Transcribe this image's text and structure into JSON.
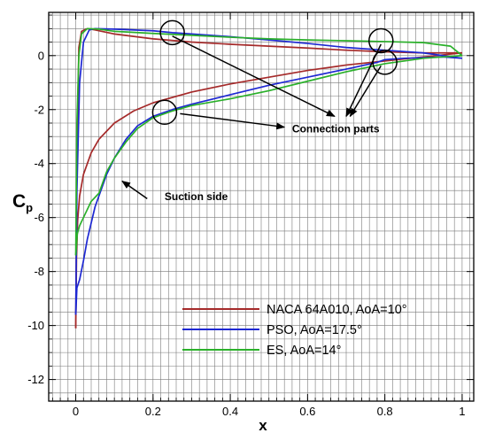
{
  "chart_data": {
    "type": "line",
    "xlabel": "x",
    "ylabel": "C",
    "ylabel_sub": "p",
    "xlim": [
      -0.07,
      1.03
    ],
    "ylim": [
      -12.8,
      1.6
    ],
    "x_ticks": [
      0,
      0.2,
      0.4,
      0.6,
      0.8,
      1
    ],
    "x_tick_labels": [
      "0",
      "0.2",
      "0.4",
      "0.6",
      "0.8",
      "1"
    ],
    "y_ticks": [
      0,
      -2,
      -4,
      -6,
      -8,
      -10,
      -12
    ],
    "y_tick_labels": [
      "0",
      "-2",
      "-4",
      "-6",
      "-8",
      "-10",
      "-12"
    ],
    "grid": true,
    "legend_position": "bottom-right",
    "series": [
      {
        "name": "NACA 64A010, AoA=10°",
        "color": "#a52a2a",
        "upper": [
          [
            0,
            -10.1
          ],
          [
            0.002,
            -7.5
          ],
          [
            0.005,
            -6.1
          ],
          [
            0.01,
            -5.2
          ],
          [
            0.02,
            -4.4
          ],
          [
            0.04,
            -3.6
          ],
          [
            0.06,
            -3.1
          ],
          [
            0.08,
            -2.8
          ],
          [
            0.1,
            -2.5
          ],
          [
            0.15,
            -2.05
          ],
          [
            0.2,
            -1.75
          ],
          [
            0.3,
            -1.35
          ],
          [
            0.4,
            -1.05
          ],
          [
            0.5,
            -0.8
          ],
          [
            0.6,
            -0.55
          ],
          [
            0.7,
            -0.35
          ],
          [
            0.8,
            -0.2
          ],
          [
            0.9,
            -0.05
          ],
          [
            1.0,
            0.1
          ]
        ],
        "lower": [
          [
            0,
            -10.1
          ],
          [
            0.003,
            -4.0
          ],
          [
            0.008,
            0.3
          ],
          [
            0.015,
            0.9
          ],
          [
            0.03,
            1.0
          ],
          [
            0.05,
            0.95
          ],
          [
            0.1,
            0.8
          ],
          [
            0.2,
            0.62
          ],
          [
            0.3,
            0.5
          ],
          [
            0.4,
            0.42
          ],
          [
            0.5,
            0.35
          ],
          [
            0.6,
            0.28
          ],
          [
            0.7,
            0.2
          ],
          [
            0.8,
            0.14
          ],
          [
            0.9,
            0.1
          ],
          [
            1.0,
            0.1
          ]
        ]
      },
      {
        "name": "PSO, AoA=17.5°",
        "color": "#1e28d2",
        "upper": [
          [
            0,
            -9.6
          ],
          [
            0.003,
            -8.6
          ],
          [
            0.01,
            -8.3
          ],
          [
            0.02,
            -7.6
          ],
          [
            0.03,
            -6.8
          ],
          [
            0.05,
            -5.6
          ],
          [
            0.08,
            -4.4
          ],
          [
            0.1,
            -3.8
          ],
          [
            0.13,
            -3.1
          ],
          [
            0.16,
            -2.6
          ],
          [
            0.2,
            -2.25
          ],
          [
            0.25,
            -2.0
          ],
          [
            0.3,
            -1.8
          ],
          [
            0.4,
            -1.45
          ],
          [
            0.5,
            -1.1
          ],
          [
            0.6,
            -0.8
          ],
          [
            0.7,
            -0.5
          ],
          [
            0.78,
            -0.25
          ],
          [
            0.8,
            -0.15
          ],
          [
            0.85,
            -0.1
          ],
          [
            0.95,
            -0.05
          ],
          [
            1.0,
            -0.1
          ]
        ],
        "lower": [
          [
            0,
            -9.6
          ],
          [
            0.003,
            -5.0
          ],
          [
            0.01,
            -1.0
          ],
          [
            0.02,
            0.5
          ],
          [
            0.035,
            0.95
          ],
          [
            0.05,
            1.0
          ],
          [
            0.1,
            0.98
          ],
          [
            0.2,
            0.92
          ],
          [
            0.25,
            0.85
          ],
          [
            0.3,
            0.8
          ],
          [
            0.4,
            0.7
          ],
          [
            0.5,
            0.58
          ],
          [
            0.6,
            0.45
          ],
          [
            0.7,
            0.3
          ],
          [
            0.8,
            0.2
          ],
          [
            0.9,
            0.1
          ],
          [
            1.0,
            -0.1
          ]
        ]
      },
      {
        "name": "ES, AoA=14°",
        "color": "#2ab02a",
        "upper": [
          [
            0,
            -7.4
          ],
          [
            0.004,
            -6.6
          ],
          [
            0.01,
            -6.3
          ],
          [
            0.02,
            -6.0
          ],
          [
            0.04,
            -5.4
          ],
          [
            0.06,
            -5.1
          ],
          [
            0.08,
            -4.3
          ],
          [
            0.1,
            -3.8
          ],
          [
            0.13,
            -3.2
          ],
          [
            0.16,
            -2.7
          ],
          [
            0.2,
            -2.3
          ],
          [
            0.25,
            -2.05
          ],
          [
            0.3,
            -1.85
          ],
          [
            0.4,
            -1.6
          ],
          [
            0.5,
            -1.3
          ],
          [
            0.6,
            -0.95
          ],
          [
            0.7,
            -0.6
          ],
          [
            0.8,
            -0.3
          ],
          [
            0.9,
            -0.1
          ],
          [
            1.0,
            0.0
          ]
        ],
        "lower": [
          [
            0,
            -7.4
          ],
          [
            0.003,
            -2.5
          ],
          [
            0.008,
            0.0
          ],
          [
            0.015,
            0.8
          ],
          [
            0.03,
            1.0
          ],
          [
            0.06,
            0.98
          ],
          [
            0.1,
            0.9
          ],
          [
            0.2,
            0.82
          ],
          [
            0.3,
            0.75
          ],
          [
            0.4,
            0.68
          ],
          [
            0.5,
            0.62
          ],
          [
            0.6,
            0.58
          ],
          [
            0.7,
            0.55
          ],
          [
            0.8,
            0.52
          ],
          [
            0.9,
            0.48
          ],
          [
            0.97,
            0.35
          ],
          [
            1.0,
            0.0
          ]
        ]
      }
    ],
    "annotations": [
      {
        "text": "Connection parts",
        "x": 0.56,
        "y": -2.85
      },
      {
        "text": "Suction side",
        "x": 0.23,
        "y": -5.35
      }
    ],
    "circles": [
      {
        "x": 0.25,
        "y": 0.85
      },
      {
        "x": 0.79,
        "y": 0.55
      },
      {
        "x": 0.8,
        "y": -0.25
      },
      {
        "x": 0.23,
        "y": -2.1
      }
    ],
    "arrows": [
      {
        "from": [
          0.25,
          0.72
        ],
        "to": [
          0.67,
          -2.25
        ]
      },
      {
        "from": [
          0.79,
          0.42
        ],
        "to": [
          0.7,
          -2.25
        ]
      },
      {
        "from": [
          0.79,
          -0.38
        ],
        "to": [
          0.71,
          -2.25
        ]
      },
      {
        "from": [
          0.27,
          -2.15
        ],
        "to": [
          0.54,
          -2.65
        ]
      },
      {
        "from": [
          0.185,
          -5.3
        ],
        "to": [
          0.12,
          -4.65
        ]
      }
    ]
  }
}
